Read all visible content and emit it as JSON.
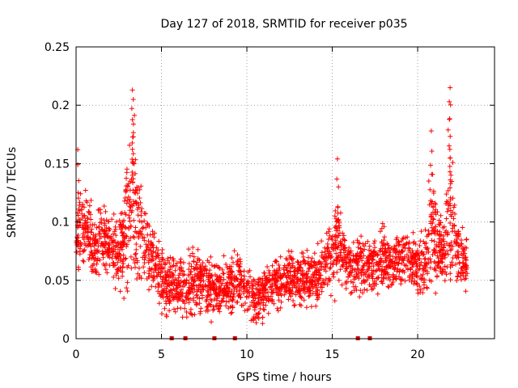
{
  "chart_data": {
    "type": "scatter",
    "title": "Day 127 of 2018, SRMTID for receiver p035",
    "xlabel": "GPS time / hours",
    "ylabel": "SRMTID / TECUs",
    "xlim": [
      0,
      24.5
    ],
    "ylim": [
      0,
      0.25
    ],
    "x_ticks": [
      0,
      5,
      10,
      15,
      20
    ],
    "x_tick_labels": [
      "0",
      "5",
      "10",
      "15",
      "20"
    ],
    "y_ticks": [
      0,
      0.05,
      0.1,
      0.15,
      0.2,
      0.25
    ],
    "y_tick_labels": [
      "0",
      "0.05",
      "0.1",
      "0.15",
      "0.2",
      "0.25"
    ],
    "grid": true,
    "marker": "+",
    "series_color": "#ff0000",
    "gap_color": "#cc0000",
    "gap_markers_x": [
      5.6,
      6.4,
      8.1,
      9.3,
      16.5,
      17.2
    ],
    "series": [
      {
        "name": "SRMTID",
        "envelope_x": [
          0,
          0.2,
          0.5,
          1,
          1.5,
          2,
          2.5,
          3,
          3.3,
          3.7,
          4.2,
          4.8,
          5.2,
          5.8,
          6.5,
          7,
          7.5,
          8,
          8.5,
          9,
          9.5,
          10,
          10.5,
          11,
          11.5,
          12,
          12.5,
          13,
          13.5,
          14,
          14.5,
          15,
          15.3,
          15.7,
          16,
          16.5,
          17,
          17.5,
          18,
          18.5,
          19,
          19.5,
          20,
          20.5,
          20.8,
          21.2,
          21.6,
          21.9,
          22.2,
          22.6,
          22.9
        ],
        "envelope_mean": [
          0.085,
          0.1,
          0.095,
          0.08,
          0.085,
          0.078,
          0.07,
          0.1,
          0.12,
          0.09,
          0.075,
          0.06,
          0.05,
          0.045,
          0.045,
          0.05,
          0.045,
          0.042,
          0.045,
          0.045,
          0.05,
          0.045,
          0.035,
          0.038,
          0.045,
          0.048,
          0.05,
          0.055,
          0.05,
          0.055,
          0.06,
          0.07,
          0.085,
          0.07,
          0.06,
          0.065,
          0.06,
          0.065,
          0.07,
          0.065,
          0.07,
          0.07,
          0.06,
          0.065,
          0.1,
          0.08,
          0.075,
          0.11,
          0.08,
          0.07,
          0.065
        ],
        "envelope_spread": [
          0.02,
          0.03,
          0.02,
          0.02,
          0.02,
          0.02,
          0.02,
          0.04,
          0.05,
          0.03,
          0.02,
          0.02,
          0.02,
          0.015,
          0.015,
          0.02,
          0.015,
          0.015,
          0.015,
          0.015,
          0.015,
          0.015,
          0.015,
          0.015,
          0.015,
          0.015,
          0.015,
          0.015,
          0.015,
          0.015,
          0.015,
          0.02,
          0.03,
          0.02,
          0.015,
          0.015,
          0.015,
          0.015,
          0.02,
          0.015,
          0.015,
          0.015,
          0.015,
          0.02,
          0.04,
          0.02,
          0.02,
          0.05,
          0.02,
          0.015,
          0.015
        ],
        "peaks": [
          {
            "x": 0.1,
            "y": 0.162
          },
          {
            "x": 3.3,
            "y": 0.213
          },
          {
            "x": 3.35,
            "y": 0.205
          },
          {
            "x": 15.3,
            "y": 0.154
          },
          {
            "x": 20.8,
            "y": 0.178
          },
          {
            "x": 21.9,
            "y": 0.215
          },
          {
            "x": 21.85,
            "y": 0.203
          }
        ],
        "minimum_observed": 0.013
      }
    ]
  }
}
